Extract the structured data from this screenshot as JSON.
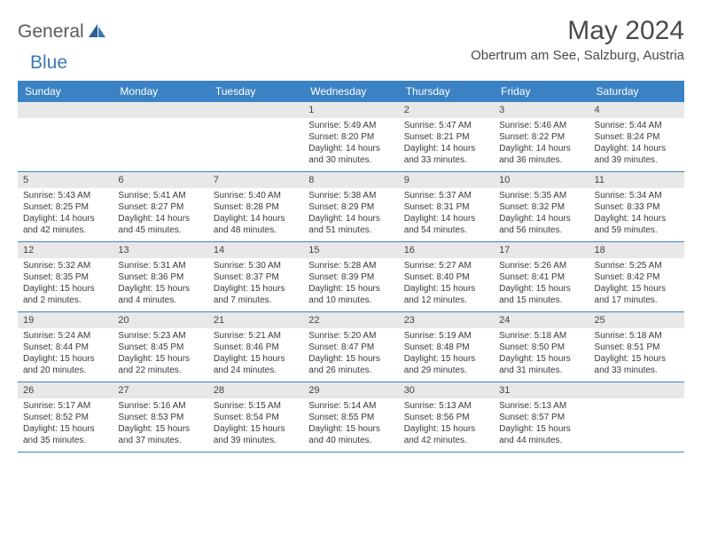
{
  "logo": {
    "text1": "General",
    "text2": "Blue"
  },
  "title": "May 2024",
  "subtitle": "Obertrum am See, Salzburg, Austria",
  "weekdays": [
    "Sunday",
    "Monday",
    "Tuesday",
    "Wednesday",
    "Thursday",
    "Friday",
    "Saturday"
  ],
  "colors": {
    "header_bg": "#3b82c4",
    "header_text": "#ffffff",
    "daynum_bg": "#e8e8e8",
    "border": "#3b82c4",
    "logo_blue": "#3b78b5"
  },
  "weeks": [
    [
      {
        "num": "",
        "sunrise": "",
        "sunset": "",
        "daylight": ""
      },
      {
        "num": "",
        "sunrise": "",
        "sunset": "",
        "daylight": ""
      },
      {
        "num": "",
        "sunrise": "",
        "sunset": "",
        "daylight": ""
      },
      {
        "num": "1",
        "sunrise": "Sunrise: 5:49 AM",
        "sunset": "Sunset: 8:20 PM",
        "daylight": "Daylight: 14 hours and 30 minutes."
      },
      {
        "num": "2",
        "sunrise": "Sunrise: 5:47 AM",
        "sunset": "Sunset: 8:21 PM",
        "daylight": "Daylight: 14 hours and 33 minutes."
      },
      {
        "num": "3",
        "sunrise": "Sunrise: 5:46 AM",
        "sunset": "Sunset: 8:22 PM",
        "daylight": "Daylight: 14 hours and 36 minutes."
      },
      {
        "num": "4",
        "sunrise": "Sunrise: 5:44 AM",
        "sunset": "Sunset: 8:24 PM",
        "daylight": "Daylight: 14 hours and 39 minutes."
      }
    ],
    [
      {
        "num": "5",
        "sunrise": "Sunrise: 5:43 AM",
        "sunset": "Sunset: 8:25 PM",
        "daylight": "Daylight: 14 hours and 42 minutes."
      },
      {
        "num": "6",
        "sunrise": "Sunrise: 5:41 AM",
        "sunset": "Sunset: 8:27 PM",
        "daylight": "Daylight: 14 hours and 45 minutes."
      },
      {
        "num": "7",
        "sunrise": "Sunrise: 5:40 AM",
        "sunset": "Sunset: 8:28 PM",
        "daylight": "Daylight: 14 hours and 48 minutes."
      },
      {
        "num": "8",
        "sunrise": "Sunrise: 5:38 AM",
        "sunset": "Sunset: 8:29 PM",
        "daylight": "Daylight: 14 hours and 51 minutes."
      },
      {
        "num": "9",
        "sunrise": "Sunrise: 5:37 AM",
        "sunset": "Sunset: 8:31 PM",
        "daylight": "Daylight: 14 hours and 54 minutes."
      },
      {
        "num": "10",
        "sunrise": "Sunrise: 5:35 AM",
        "sunset": "Sunset: 8:32 PM",
        "daylight": "Daylight: 14 hours and 56 minutes."
      },
      {
        "num": "11",
        "sunrise": "Sunrise: 5:34 AM",
        "sunset": "Sunset: 8:33 PM",
        "daylight": "Daylight: 14 hours and 59 minutes."
      }
    ],
    [
      {
        "num": "12",
        "sunrise": "Sunrise: 5:32 AM",
        "sunset": "Sunset: 8:35 PM",
        "daylight": "Daylight: 15 hours and 2 minutes."
      },
      {
        "num": "13",
        "sunrise": "Sunrise: 5:31 AM",
        "sunset": "Sunset: 8:36 PM",
        "daylight": "Daylight: 15 hours and 4 minutes."
      },
      {
        "num": "14",
        "sunrise": "Sunrise: 5:30 AM",
        "sunset": "Sunset: 8:37 PM",
        "daylight": "Daylight: 15 hours and 7 minutes."
      },
      {
        "num": "15",
        "sunrise": "Sunrise: 5:28 AM",
        "sunset": "Sunset: 8:39 PM",
        "daylight": "Daylight: 15 hours and 10 minutes."
      },
      {
        "num": "16",
        "sunrise": "Sunrise: 5:27 AM",
        "sunset": "Sunset: 8:40 PM",
        "daylight": "Daylight: 15 hours and 12 minutes."
      },
      {
        "num": "17",
        "sunrise": "Sunrise: 5:26 AM",
        "sunset": "Sunset: 8:41 PM",
        "daylight": "Daylight: 15 hours and 15 minutes."
      },
      {
        "num": "18",
        "sunrise": "Sunrise: 5:25 AM",
        "sunset": "Sunset: 8:42 PM",
        "daylight": "Daylight: 15 hours and 17 minutes."
      }
    ],
    [
      {
        "num": "19",
        "sunrise": "Sunrise: 5:24 AM",
        "sunset": "Sunset: 8:44 PM",
        "daylight": "Daylight: 15 hours and 20 minutes."
      },
      {
        "num": "20",
        "sunrise": "Sunrise: 5:23 AM",
        "sunset": "Sunset: 8:45 PM",
        "daylight": "Daylight: 15 hours and 22 minutes."
      },
      {
        "num": "21",
        "sunrise": "Sunrise: 5:21 AM",
        "sunset": "Sunset: 8:46 PM",
        "daylight": "Daylight: 15 hours and 24 minutes."
      },
      {
        "num": "22",
        "sunrise": "Sunrise: 5:20 AM",
        "sunset": "Sunset: 8:47 PM",
        "daylight": "Daylight: 15 hours and 26 minutes."
      },
      {
        "num": "23",
        "sunrise": "Sunrise: 5:19 AM",
        "sunset": "Sunset: 8:48 PM",
        "daylight": "Daylight: 15 hours and 29 minutes."
      },
      {
        "num": "24",
        "sunrise": "Sunrise: 5:18 AM",
        "sunset": "Sunset: 8:50 PM",
        "daylight": "Daylight: 15 hours and 31 minutes."
      },
      {
        "num": "25",
        "sunrise": "Sunrise: 5:18 AM",
        "sunset": "Sunset: 8:51 PM",
        "daylight": "Daylight: 15 hours and 33 minutes."
      }
    ],
    [
      {
        "num": "26",
        "sunrise": "Sunrise: 5:17 AM",
        "sunset": "Sunset: 8:52 PM",
        "daylight": "Daylight: 15 hours and 35 minutes."
      },
      {
        "num": "27",
        "sunrise": "Sunrise: 5:16 AM",
        "sunset": "Sunset: 8:53 PM",
        "daylight": "Daylight: 15 hours and 37 minutes."
      },
      {
        "num": "28",
        "sunrise": "Sunrise: 5:15 AM",
        "sunset": "Sunset: 8:54 PM",
        "daylight": "Daylight: 15 hours and 39 minutes."
      },
      {
        "num": "29",
        "sunrise": "Sunrise: 5:14 AM",
        "sunset": "Sunset: 8:55 PM",
        "daylight": "Daylight: 15 hours and 40 minutes."
      },
      {
        "num": "30",
        "sunrise": "Sunrise: 5:13 AM",
        "sunset": "Sunset: 8:56 PM",
        "daylight": "Daylight: 15 hours and 42 minutes."
      },
      {
        "num": "31",
        "sunrise": "Sunrise: 5:13 AM",
        "sunset": "Sunset: 8:57 PM",
        "daylight": "Daylight: 15 hours and 44 minutes."
      },
      {
        "num": "",
        "sunrise": "",
        "sunset": "",
        "daylight": ""
      }
    ]
  ]
}
